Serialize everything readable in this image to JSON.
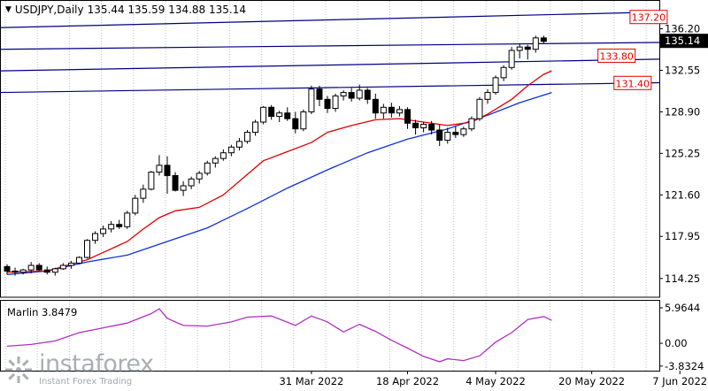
{
  "header": {
    "symbol": "USDJPY,Daily",
    "ohlc": "135.44 135.59 134.88 135.14"
  },
  "indicator": {
    "label": "Marlin 3.8479",
    "ticks": [
      "5.9644",
      "0.00",
      "-3.8324"
    ]
  },
  "watermark": {
    "brand": "instaforex",
    "tagline": "Instant Forex Trading"
  },
  "colors": {
    "axis": "#000000",
    "grid": "#c0c0c0",
    "level_line": "#000080",
    "ma_fast": "#e00000",
    "ma_slow": "#1030e0",
    "marlin": "#b030c0",
    "level_box_border": "#e00000",
    "level_box_text": "#e00000",
    "price_box_bg": "#000000",
    "price_box_text": "#ffffff",
    "candle": "#000000"
  },
  "chart_data": {
    "type": "candlestick",
    "price_axis": {
      "ticks": [
        "136.20",
        "132.55",
        "128.90",
        "125.25",
        "121.60",
        "117.95",
        "114.25"
      ],
      "tick_values": [
        136.2,
        132.55,
        128.9,
        125.25,
        121.6,
        117.95,
        114.25
      ],
      "ylim": [
        112.6,
        138.5
      ],
      "current_price": "135.14"
    },
    "time_axis": {
      "labels": [
        "",
        "31 Mar 2022",
        "18 Apr 2022",
        "4 May 2022",
        "20 May 2022",
        "7 Jun 2022"
      ],
      "bar_index": [
        0,
        38,
        50,
        61,
        73,
        84
      ]
    },
    "levels": [
      {
        "label": "137.20",
        "value": 137.2,
        "line": [
          0,
          136.3,
          95,
          137.9
        ]
      },
      {
        "label": "133.80",
        "value": 133.8,
        "line": [
          0,
          134.4,
          95,
          135.1
        ]
      },
      {
        "label": "131.40",
        "value": 131.4,
        "line": [
          0,
          132.5,
          95,
          133.7
        ]
      },
      {
        "label": "",
        "value": 131.4,
        "line": [
          0,
          130.6,
          95,
          131.6
        ]
      }
    ],
    "level_labels": [
      {
        "label": "137.20",
        "bar": 78,
        "value": 137.2
      },
      {
        "label": "133.80",
        "bar": 74,
        "value": 133.8
      },
      {
        "label": "131.40",
        "bar": 76,
        "value": 131.4
      }
    ],
    "candles": [
      [
        115.3,
        115.5,
        114.6,
        114.9
      ],
      [
        114.9,
        115.2,
        114.5,
        114.8
      ],
      [
        114.8,
        115.1,
        114.6,
        115.0
      ],
      [
        115.0,
        115.7,
        114.7,
        115.4
      ],
      [
        115.4,
        115.6,
        114.9,
        115.0
      ],
      [
        115.0,
        115.3,
        114.6,
        114.8
      ],
      [
        114.8,
        115.2,
        114.5,
        115.1
      ],
      [
        115.1,
        115.6,
        115.0,
        115.4
      ],
      [
        115.4,
        115.8,
        115.1,
        115.6
      ],
      [
        115.6,
        116.2,
        115.5,
        116.1
      ],
      [
        116.1,
        117.7,
        116.0,
        117.6
      ],
      [
        117.6,
        118.4,
        117.3,
        118.2
      ],
      [
        118.2,
        118.9,
        117.9,
        118.6
      ],
      [
        118.6,
        119.3,
        118.3,
        119.0
      ],
      [
        119.0,
        119.4,
        118.6,
        118.8
      ],
      [
        118.8,
        120.2,
        118.6,
        120.0
      ],
      [
        120.0,
        121.6,
        119.8,
        121.3
      ],
      [
        121.3,
        122.5,
        120.9,
        122.1
      ],
      [
        122.1,
        123.7,
        122.0,
        123.6
      ],
      [
        123.6,
        125.1,
        123.3,
        124.2
      ],
      [
        124.2,
        125.0,
        121.7,
        123.3
      ],
      [
        123.3,
        123.6,
        121.9,
        122.0
      ],
      [
        122.0,
        122.8,
        121.5,
        122.4
      ],
      [
        122.4,
        123.2,
        122.1,
        123.0
      ],
      [
        123.0,
        123.7,
        122.6,
        123.5
      ],
      [
        123.5,
        124.6,
        123.3,
        124.4
      ],
      [
        124.4,
        125.0,
        124.0,
        124.8
      ],
      [
        124.8,
        125.6,
        124.6,
        125.3
      ],
      [
        125.3,
        126.0,
        125.0,
        125.8
      ],
      [
        125.8,
        126.6,
        125.5,
        126.3
      ],
      [
        126.3,
        127.3,
        126.1,
        127.1
      ],
      [
        127.1,
        128.2,
        126.8,
        128.0
      ],
      [
        128.0,
        129.4,
        127.8,
        129.3
      ],
      [
        129.3,
        129.5,
        128.2,
        128.5
      ],
      [
        128.5,
        129.0,
        128.0,
        128.8
      ],
      [
        128.8,
        129.3,
        128.1,
        128.3
      ],
      [
        128.3,
        128.9,
        127.0,
        127.4
      ],
      [
        127.4,
        129.1,
        127.2,
        128.9
      ],
      [
        128.9,
        131.2,
        128.7,
        130.9
      ],
      [
        130.9,
        131.2,
        129.4,
        130.0
      ],
      [
        130.0,
        130.3,
        128.8,
        129.2
      ],
      [
        129.2,
        130.5,
        128.9,
        130.3
      ],
      [
        130.3,
        130.8,
        129.9,
        130.6
      ],
      [
        130.6,
        131.0,
        129.8,
        130.1
      ],
      [
        130.1,
        131.3,
        129.9,
        130.8
      ],
      [
        130.8,
        131.0,
        129.6,
        130.0
      ],
      [
        130.0,
        130.5,
        128.3,
        128.8
      ],
      [
        128.8,
        129.6,
        128.3,
        129.3
      ],
      [
        129.3,
        129.7,
        128.4,
        128.8
      ],
      [
        128.8,
        129.4,
        128.5,
        129.1
      ],
      [
        129.1,
        129.3,
        127.4,
        127.9
      ],
      [
        127.9,
        128.2,
        126.9,
        127.5
      ],
      [
        127.5,
        128.0,
        127.1,
        127.8
      ],
      [
        127.8,
        128.1,
        126.9,
        127.3
      ],
      [
        127.3,
        127.8,
        125.9,
        126.4
      ],
      [
        126.4,
        127.5,
        126.1,
        127.1
      ],
      [
        127.1,
        127.6,
        126.6,
        126.9
      ],
      [
        126.9,
        127.6,
        126.7,
        127.4
      ],
      [
        127.4,
        128.5,
        127.2,
        128.3
      ],
      [
        128.3,
        130.2,
        128.1,
        130.0
      ],
      [
        130.0,
        130.9,
        129.6,
        130.6
      ],
      [
        130.6,
        132.1,
        130.4,
        131.9
      ],
      [
        131.9,
        133.0,
        131.6,
        132.8
      ],
      [
        132.8,
        134.6,
        132.6,
        134.3
      ],
      [
        134.3,
        134.9,
        133.6,
        134.6
      ],
      [
        134.6,
        134.8,
        133.5,
        134.4
      ],
      [
        134.4,
        135.6,
        134.1,
        135.4
      ],
      [
        135.4,
        135.6,
        134.9,
        135.1
      ]
    ],
    "ma_fast": [
      [
        0,
        114.8
      ],
      [
        5,
        114.9
      ],
      [
        10,
        115.9
      ],
      [
        15,
        117.5
      ],
      [
        17,
        118.6
      ],
      [
        19,
        119.6
      ],
      [
        21,
        120.2
      ],
      [
        24,
        120.5
      ],
      [
        27,
        121.6
      ],
      [
        30,
        123.4
      ],
      [
        32,
        124.6
      ],
      [
        35,
        125.4
      ],
      [
        38,
        126.2
      ],
      [
        40,
        127.1
      ],
      [
        43,
        127.7
      ],
      [
        46,
        128.2
      ],
      [
        49,
        128.3
      ],
      [
        52,
        128.0
      ],
      [
        55,
        127.7
      ],
      [
        58,
        128.0
      ],
      [
        60,
        128.7
      ],
      [
        63,
        130.0
      ],
      [
        65,
        131.2
      ],
      [
        67,
        132.2
      ],
      [
        68,
        132.5
      ]
    ],
    "ma_slow": [
      [
        0,
        114.6
      ],
      [
        5,
        114.9
      ],
      [
        10,
        115.7
      ],
      [
        15,
        116.3
      ],
      [
        20,
        117.5
      ],
      [
        25,
        118.7
      ],
      [
        30,
        120.4
      ],
      [
        35,
        122.2
      ],
      [
        40,
        123.8
      ],
      [
        45,
        125.3
      ],
      [
        50,
        126.5
      ],
      [
        55,
        127.4
      ],
      [
        60,
        128.6
      ],
      [
        64,
        129.7
      ],
      [
        68,
        130.6
      ]
    ],
    "indicator": {
      "name": "Marlin",
      "ylim": [
        -4.6,
        7.3
      ],
      "values": [
        [
          0,
          -0.5
        ],
        [
          3,
          -0.2
        ],
        [
          6,
          0.4
        ],
        [
          9,
          1.8
        ],
        [
          12,
          2.6
        ],
        [
          15,
          3.4
        ],
        [
          18,
          5.0
        ],
        [
          19,
          5.8
        ],
        [
          20,
          4.2
        ],
        [
          22,
          3.0
        ],
        [
          25,
          2.9
        ],
        [
          28,
          3.6
        ],
        [
          30,
          4.4
        ],
        [
          33,
          4.6
        ],
        [
          36,
          3.0
        ],
        [
          38,
          4.6
        ],
        [
          40,
          3.6
        ],
        [
          42,
          1.9
        ],
        [
          44,
          3.2
        ],
        [
          46,
          2.0
        ],
        [
          48,
          0.5
        ],
        [
          50,
          -0.8
        ],
        [
          52,
          -2.2
        ],
        [
          54,
          -3.1
        ],
        [
          55,
          -2.6
        ],
        [
          57,
          -2.9
        ],
        [
          59,
          -2.1
        ],
        [
          61,
          0.2
        ],
        [
          63,
          1.8
        ],
        [
          65,
          4.0
        ],
        [
          67,
          4.5
        ],
        [
          68,
          3.85
        ]
      ]
    }
  }
}
